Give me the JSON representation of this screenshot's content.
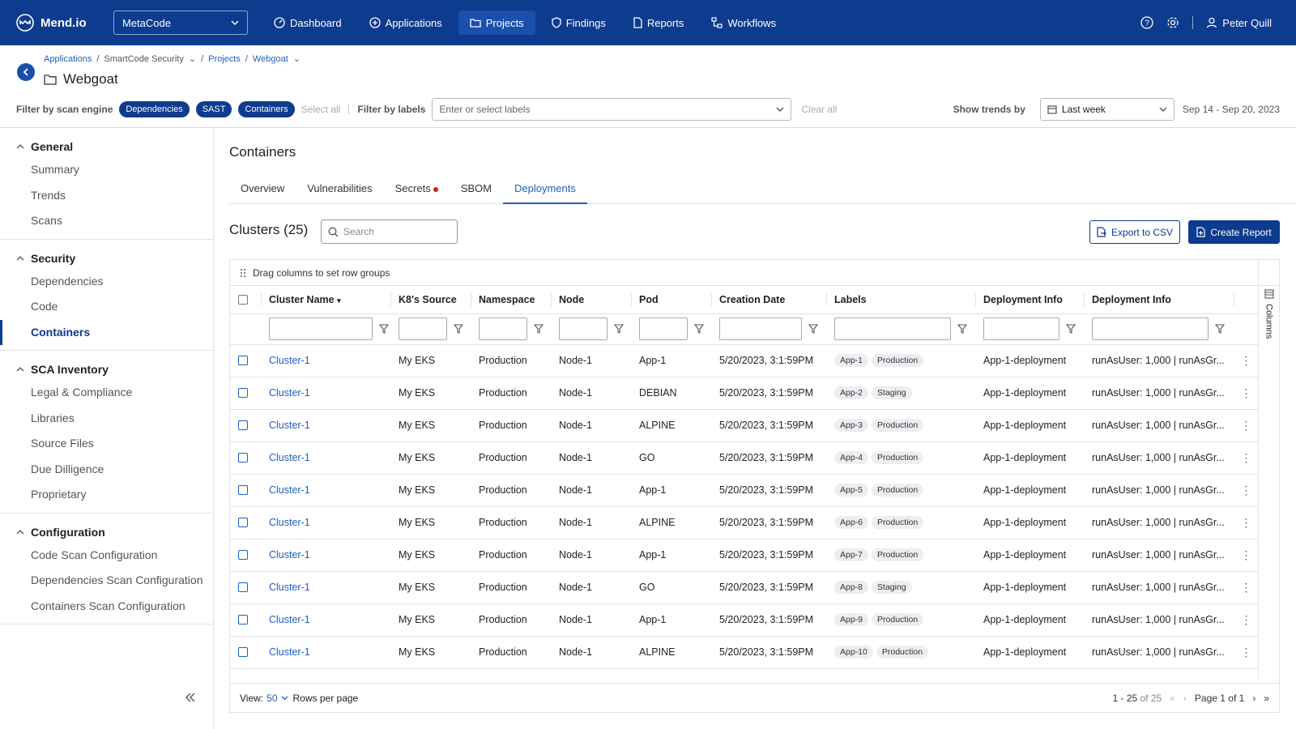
{
  "app": {
    "logo_text": "Mend.io",
    "org": "MetaCode"
  },
  "nav": {
    "items": [
      {
        "label": "Dashboard",
        "icon": "dashboard-icon"
      },
      {
        "label": "Applications",
        "icon": "applications-icon"
      },
      {
        "label": "Projects",
        "icon": "folder-icon"
      },
      {
        "label": "Findings",
        "icon": "shield-icon"
      },
      {
        "label": "Reports",
        "icon": "document-icon"
      },
      {
        "label": "Workflows",
        "icon": "workflow-icon"
      }
    ],
    "user": "Peter Quill"
  },
  "breadcrumb": {
    "b1": "Applications",
    "b2": "SmartCode Security",
    "b3": "Projects",
    "b4": "Webgoat"
  },
  "project": {
    "title": "Webgoat"
  },
  "filters": {
    "engine_label": "Filter by scan engine",
    "engines": [
      "Dependencies",
      "SAST",
      "Containers"
    ],
    "select_all": "Select all",
    "labels_label": "Filter by labels",
    "labels_placeholder": "Enter or select labels",
    "clear_all": "Clear all",
    "trends_label": "Show trends by",
    "trend_value": "Last week",
    "date_range": "Sep 14 - Sep 20, 2023"
  },
  "sidebar": {
    "general": {
      "title": "General",
      "items": [
        "Summary",
        "Trends",
        "Scans"
      ]
    },
    "security": {
      "title": "Security",
      "items": [
        "Dependencies",
        "Code",
        "Containers"
      ]
    },
    "sca": {
      "title": "SCA Inventory",
      "items": [
        "Legal & Compliance",
        "Libraries",
        "Source Files",
        "Due Dilligence",
        "Proprietary"
      ]
    },
    "config": {
      "title": "Configuration",
      "items": [
        "Code Scan Configuration",
        "Dependencies Scan Configuration",
        "Containers Scan Configuration"
      ]
    }
  },
  "main": {
    "title": "Containers",
    "tabs": [
      "Overview",
      "Vulnerabilities",
      "Secrets",
      "SBOM",
      "Deployments"
    ],
    "clusters_title": "Clusters (25)",
    "search_placeholder": "Search",
    "export": "Export to CSV",
    "create": "Create Report",
    "drag_hint": "Drag columns to set row groups",
    "columns_label": "Columns"
  },
  "table": {
    "headers": [
      "Cluster Name",
      "K8's Source",
      "Namespace",
      "Node",
      "Pod",
      "Creation Date",
      "Labels",
      "Deployment Info",
      "Deployment Info"
    ],
    "rows": [
      [
        "Cluster-1",
        "My EKS",
        "Production",
        "Node-1",
        "App-1",
        "5/20/2023, 3:1:59PM",
        "App-1",
        "Production",
        "App-1-deployment",
        "runAsUser: 1,000 | runAsGr..."
      ],
      [
        "Cluster-1",
        "My EKS",
        "Production",
        "Node-1",
        "DEBIAN",
        "5/20/2023, 3:1:59PM",
        "App-2",
        "Staging",
        "App-1-deployment",
        "runAsUser: 1,000 | runAsGr..."
      ],
      [
        "Cluster-1",
        "My EKS",
        "Production",
        "Node-1",
        "ALPINE",
        "5/20/2023, 3:1:59PM",
        "App-3",
        "Production",
        "App-1-deployment",
        "runAsUser: 1,000 | runAsGr..."
      ],
      [
        "Cluster-1",
        "My EKS",
        "Production",
        "Node-1",
        "GO",
        "5/20/2023, 3:1:59PM",
        "App-4",
        "Production",
        "App-1-deployment",
        "runAsUser: 1,000 | runAsGr..."
      ],
      [
        "Cluster-1",
        "My EKS",
        "Production",
        "Node-1",
        "App-1",
        "5/20/2023, 3:1:59PM",
        "App-5",
        "Production",
        "App-1-deployment",
        "runAsUser: 1,000 | runAsGr..."
      ],
      [
        "Cluster-1",
        "My EKS",
        "Production",
        "Node-1",
        "ALPINE",
        "5/20/2023, 3:1:59PM",
        "App-6",
        "Production",
        "App-1-deployment",
        "runAsUser: 1,000 | runAsGr..."
      ],
      [
        "Cluster-1",
        "My EKS",
        "Production",
        "Node-1",
        "App-1",
        "5/20/2023, 3:1:59PM",
        "App-7",
        "Production",
        "App-1-deployment",
        "runAsUser: 1,000 | runAsGr..."
      ],
      [
        "Cluster-1",
        "My EKS",
        "Production",
        "Node-1",
        "GO",
        "5/20/2023, 3:1:59PM",
        "App-8",
        "Staging",
        "App-1-deployment",
        "runAsUser: 1,000 | runAsGr..."
      ],
      [
        "Cluster-1",
        "My EKS",
        "Production",
        "Node-1",
        "App-1",
        "5/20/2023, 3:1:59PM",
        "App-9",
        "Production",
        "App-1-deployment",
        "runAsUser: 1,000 | runAsGr..."
      ],
      [
        "Cluster-1",
        "My EKS",
        "Production",
        "Node-1",
        "ALPINE",
        "5/20/2023, 3:1:59PM",
        "App-10",
        "Production",
        "App-1-deployment",
        "runAsUser: 1,000 | runAsGr..."
      ]
    ]
  },
  "pager": {
    "view_label": "View:",
    "view_value": "50",
    "rows_label": "Rows per page",
    "range": "1 - 25",
    "of": "of 25",
    "page": "Page 1 of 1"
  },
  "colors": {
    "primary": "#0d3b8e",
    "link": "#1f5fbf",
    "alert": "#d21b1b"
  }
}
